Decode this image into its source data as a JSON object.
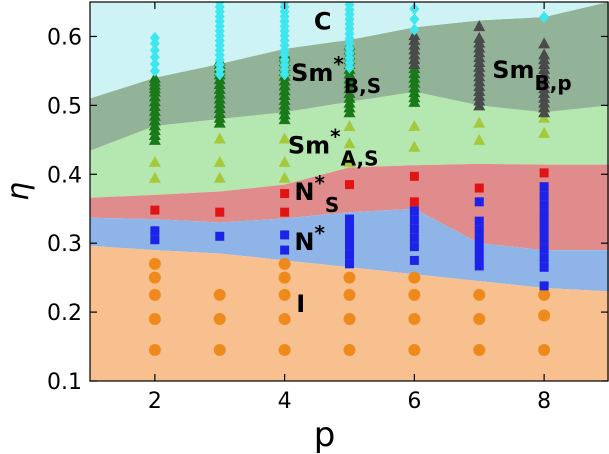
{
  "chart_data": {
    "type": "scatter",
    "title": "",
    "xlabel": "p",
    "ylabel": "η",
    "xlim": [
      1,
      9
    ],
    "ylim": [
      0.1,
      0.65
    ],
    "xticks": [
      2,
      4,
      6,
      8
    ],
    "yticks": [
      0.1,
      0.2,
      0.3,
      0.4,
      0.5,
      0.6
    ],
    "xtick_labels": [
      "2",
      "4",
      "6",
      "8"
    ],
    "ytick_labels": [
      "0.1",
      "0.2",
      "0.3",
      "0.4",
      "0.5",
      "0.6"
    ],
    "grid": false,
    "legend": "none",
    "regions": [
      {
        "phase": "C",
        "color": "#cdf3f5",
        "lower": [
          [
            1,
            0.51
          ],
          [
            2,
            0.54
          ],
          [
            3,
            0.56
          ],
          [
            4,
            0.582
          ],
          [
            5,
            0.595
          ],
          [
            6,
            0.613
          ],
          [
            7,
            0.623
          ],
          [
            8,
            0.628
          ],
          [
            9,
            0.65
          ]
        ],
        "upper": [
          [
            1,
            0.65
          ],
          [
            9,
            0.65
          ]
        ]
      },
      {
        "phase": "SmB,p",
        "color": "#8b8b8b",
        "lower": [
          [
            5.3,
            0.5
          ],
          [
            6,
            0.52
          ],
          [
            7,
            0.5
          ],
          [
            8,
            0.49
          ],
          [
            9,
            0.5
          ]
        ],
        "upper": [
          [
            5.3,
            0.6
          ],
          [
            6,
            0.613
          ],
          [
            7,
            0.623
          ],
          [
            8,
            0.628
          ],
          [
            9,
            0.65
          ]
        ]
      },
      {
        "phase": "Sm*B,S",
        "color": "#93b399",
        "lower": [
          [
            1,
            0.434
          ],
          [
            2,
            0.47
          ],
          [
            3,
            0.48
          ],
          [
            4,
            0.49
          ],
          [
            5,
            0.505
          ],
          [
            6,
            0.52
          ],
          [
            7,
            0.5
          ],
          [
            8,
            0.49
          ],
          [
            9,
            0.5
          ]
        ],
        "upper": [
          [
            1,
            0.51
          ],
          [
            2,
            0.54
          ],
          [
            3,
            0.56
          ],
          [
            4,
            0.582
          ],
          [
            5,
            0.595
          ],
          [
            6,
            0.613
          ],
          [
            7,
            0.623
          ],
          [
            8,
            0.628
          ],
          [
            9,
            0.65
          ]
        ]
      },
      {
        "phase": "Sm*A,S",
        "color": "#b4e8b0",
        "lower": [
          [
            1,
            0.366
          ],
          [
            2,
            0.37
          ],
          [
            3,
            0.375
          ],
          [
            4,
            0.385
          ],
          [
            5,
            0.41
          ],
          [
            6,
            0.413
          ],
          [
            7,
            0.415
          ],
          [
            8,
            0.414
          ],
          [
            9,
            0.414
          ]
        ],
        "upper": [
          [
            1,
            0.434
          ],
          [
            2,
            0.47
          ],
          [
            3,
            0.48
          ],
          [
            4,
            0.49
          ],
          [
            5,
            0.505
          ],
          [
            6,
            0.52
          ],
          [
            7,
            0.5
          ],
          [
            8,
            0.49
          ],
          [
            9,
            0.5
          ]
        ]
      },
      {
        "phase": "N*S",
        "color": "#e08c8c",
        "lower": [
          [
            1,
            0.337
          ],
          [
            2,
            0.335
          ],
          [
            3,
            0.33
          ],
          [
            4,
            0.336
          ],
          [
            5,
            0.345
          ],
          [
            6,
            0.35
          ],
          [
            7,
            0.3
          ],
          [
            8,
            0.29
          ],
          [
            9,
            0.29
          ]
        ],
        "upper": [
          [
            1,
            0.366
          ],
          [
            2,
            0.37
          ],
          [
            3,
            0.375
          ],
          [
            4,
            0.385
          ],
          [
            5,
            0.41
          ],
          [
            6,
            0.413
          ],
          [
            7,
            0.415
          ],
          [
            8,
            0.414
          ],
          [
            9,
            0.414
          ]
        ]
      },
      {
        "phase": "N*",
        "color": "#8eb4e8",
        "lower": [
          [
            1,
            0.296
          ],
          [
            2,
            0.29
          ],
          [
            3,
            0.285
          ],
          [
            4,
            0.275
          ],
          [
            5,
            0.265
          ],
          [
            6,
            0.255
          ],
          [
            7,
            0.245
          ],
          [
            8,
            0.235
          ],
          [
            9,
            0.23
          ]
        ],
        "upper": [
          [
            1,
            0.337
          ],
          [
            2,
            0.335
          ],
          [
            3,
            0.33
          ],
          [
            4,
            0.336
          ],
          [
            5,
            0.345
          ],
          [
            6,
            0.35
          ],
          [
            7,
            0.3
          ],
          [
            8,
            0.29
          ],
          [
            9,
            0.29
          ]
        ]
      },
      {
        "phase": "I",
        "color": "#f8c08e",
        "lower": [
          [
            1,
            0.1
          ],
          [
            9,
            0.1
          ]
        ],
        "upper": [
          [
            1,
            0.296
          ],
          [
            2,
            0.29
          ],
          [
            3,
            0.285
          ],
          [
            4,
            0.275
          ],
          [
            5,
            0.265
          ],
          [
            6,
            0.255
          ],
          [
            7,
            0.245
          ],
          [
            8,
            0.235
          ],
          [
            9,
            0.23
          ]
        ]
      }
    ],
    "series": [
      {
        "phase": "I",
        "marker": "circle",
        "color": "#ee8a1c",
        "x": [
          2,
          2,
          2,
          2,
          2,
          3,
          3,
          3,
          4,
          4,
          4,
          4,
          4,
          5,
          5,
          5,
          5,
          6,
          6,
          6,
          6,
          7,
          7,
          7,
          8,
          8,
          8
        ],
        "y": [
          0.145,
          0.19,
          0.225,
          0.25,
          0.27,
          0.145,
          0.19,
          0.225,
          0.145,
          0.19,
          0.225,
          0.25,
          0.27,
          0.145,
          0.19,
          0.225,
          0.25,
          0.145,
          0.19,
          0.225,
          0.25,
          0.145,
          0.19,
          0.225,
          0.145,
          0.195,
          0.225
        ]
      },
      {
        "phase": "N*",
        "marker": "square",
        "color": "#1d22e8",
        "x": [
          2,
          2,
          3,
          4,
          4,
          5,
          5,
          5,
          5,
          5,
          5,
          6,
          6,
          6,
          6,
          6,
          6,
          7,
          7,
          7,
          7,
          7,
          7,
          7,
          8,
          8,
          8,
          8,
          8,
          8,
          8,
          8,
          8,
          8,
          8
        ],
        "y": [
          0.305,
          0.318,
          0.31,
          0.29,
          0.312,
          0.27,
          0.283,
          0.296,
          0.309,
          0.322,
          0.335,
          0.275,
          0.295,
          0.308,
          0.321,
          0.334,
          0.347,
          0.267,
          0.28,
          0.293,
          0.306,
          0.319,
          0.332,
          0.36,
          0.238,
          0.265,
          0.278,
          0.291,
          0.304,
          0.317,
          0.33,
          0.343,
          0.356,
          0.369,
          0.382
        ]
      },
      {
        "phase": "N*S",
        "marker": "square",
        "color": "#e01414",
        "x": [
          2,
          3,
          4,
          4,
          5,
          6,
          6,
          7,
          8
        ],
        "y": [
          0.348,
          0.345,
          0.345,
          0.372,
          0.385,
          0.36,
          0.397,
          0.38,
          0.402
        ]
      },
      {
        "phase": "Sm*A,S",
        "marker": "triangle",
        "color": "#a5c93a",
        "x": [
          2,
          2,
          3,
          3,
          3,
          4,
          4,
          4,
          5,
          5,
          5,
          6,
          6,
          7,
          7,
          8,
          8
        ],
        "y": [
          0.395,
          0.418,
          0.395,
          0.418,
          0.452,
          0.395,
          0.418,
          0.452,
          0.418,
          0.445,
          0.47,
          0.44,
          0.47,
          0.45,
          0.475,
          0.46,
          0.482
        ]
      },
      {
        "phase": "Sm*B,S",
        "marker": "triangle",
        "color": "#1a7a1a",
        "x": [
          2,
          2,
          2,
          2,
          2,
          2,
          2,
          2,
          2,
          2,
          2,
          2,
          2,
          2,
          2,
          3,
          3,
          3,
          3,
          3,
          3,
          3,
          3,
          3,
          3,
          3,
          3,
          3,
          3,
          3,
          4,
          4,
          4,
          4,
          4,
          4,
          4,
          4,
          4,
          4,
          4,
          4,
          4,
          4,
          4,
          5,
          5,
          5,
          5,
          5,
          5,
          5,
          5,
          5,
          5,
          5,
          5,
          5,
          5,
          5,
          6,
          6,
          6,
          6,
          6,
          6,
          6,
          6
        ],
        "y": [
          0.45,
          0.457,
          0.464,
          0.471,
          0.478,
          0.485,
          0.492,
          0.499,
          0.506,
          0.513,
          0.52,
          0.525,
          0.53,
          0.535,
          0.54,
          0.475,
          0.482,
          0.489,
          0.496,
          0.503,
          0.51,
          0.517,
          0.524,
          0.531,
          0.538,
          0.545,
          0.55,
          0.555,
          0.56,
          0.565,
          0.48,
          0.487,
          0.494,
          0.501,
          0.508,
          0.515,
          0.522,
          0.529,
          0.536,
          0.543,
          0.55,
          0.557,
          0.564,
          0.571,
          0.575,
          0.49,
          0.497,
          0.504,
          0.511,
          0.518,
          0.525,
          0.532,
          0.539,
          0.546,
          0.553,
          0.56,
          0.567,
          0.574,
          0.581,
          0.588,
          0.505,
          0.512,
          0.519,
          0.526,
          0.533,
          0.54,
          0.547,
          0.554
        ]
      },
      {
        "phase": "SmB,p",
        "marker": "triangle",
        "color": "#4a4a4a",
        "x": [
          6,
          6,
          6,
          6,
          6,
          6,
          6,
          7,
          7,
          7,
          7,
          7,
          7,
          7,
          7,
          7,
          7,
          7,
          7,
          7,
          7,
          7,
          7,
          8,
          8,
          8,
          8,
          8,
          8,
          8,
          8,
          8,
          8,
          8,
          8,
          8,
          8
        ],
        "y": [
          0.56,
          0.567,
          0.574,
          0.581,
          0.588,
          0.595,
          0.602,
          0.5,
          0.507,
          0.514,
          0.521,
          0.528,
          0.535,
          0.542,
          0.549,
          0.556,
          0.563,
          0.57,
          0.577,
          0.584,
          0.591,
          0.598,
          0.615,
          0.49,
          0.497,
          0.504,
          0.511,
          0.518,
          0.525,
          0.532,
          0.539,
          0.546,
          0.553,
          0.56,
          0.567,
          0.574,
          0.59
        ]
      },
      {
        "phase": "C",
        "marker": "diamond",
        "color": "#3ee6f0",
        "x": [
          2,
          2,
          2,
          2,
          2,
          2,
          3,
          3,
          3,
          3,
          3,
          3,
          3,
          3,
          3,
          3,
          3,
          3,
          3,
          3,
          3,
          3,
          4,
          4,
          4,
          4,
          4,
          4,
          4,
          4,
          4,
          4,
          4,
          4,
          4,
          4,
          4,
          4,
          5,
          5,
          5,
          5,
          5,
          5,
          5,
          5,
          5,
          5,
          5,
          5,
          5,
          5,
          5,
          6,
          6,
          6,
          8
        ],
        "y": [
          0.55,
          0.56,
          0.57,
          0.58,
          0.59,
          0.598,
          0.545,
          0.552,
          0.559,
          0.566,
          0.573,
          0.58,
          0.587,
          0.594,
          0.601,
          0.608,
          0.615,
          0.622,
          0.629,
          0.636,
          0.643,
          0.65,
          0.545,
          0.552,
          0.559,
          0.566,
          0.573,
          0.58,
          0.587,
          0.594,
          0.601,
          0.608,
          0.615,
          0.622,
          0.629,
          0.636,
          0.643,
          0.65,
          0.555,
          0.562,
          0.569,
          0.576,
          0.583,
          0.59,
          0.597,
          0.604,
          0.611,
          0.618,
          0.625,
          0.632,
          0.639,
          0.646,
          0.652,
          0.61,
          0.625,
          0.64,
          0.628
        ]
      }
    ],
    "annotations": [
      {
        "text": "C",
        "sub": "",
        "sup": "",
        "x": 4.45,
        "y": 0.61
      },
      {
        "text": "Sm",
        "sup": "*",
        "sub": "B,S",
        "x": 4.1,
        "y": 0.535
      },
      {
        "text": "Sm",
        "sup": "",
        "sub": "B,p",
        "x": 7.2,
        "y": 0.54
      },
      {
        "text": "Sm",
        "sup": "*",
        "sub": "A,S",
        "x": 4.05,
        "y": 0.43
      },
      {
        "text": "N",
        "sup": "*",
        "sub": "S",
        "x": 4.15,
        "y": 0.363
      },
      {
        "text": "N",
        "sup": "*",
        "sub": "",
        "x": 4.15,
        "y": 0.29
      },
      {
        "text": "I",
        "sup": "",
        "sub": "",
        "x": 4.18,
        "y": 0.2
      }
    ]
  }
}
